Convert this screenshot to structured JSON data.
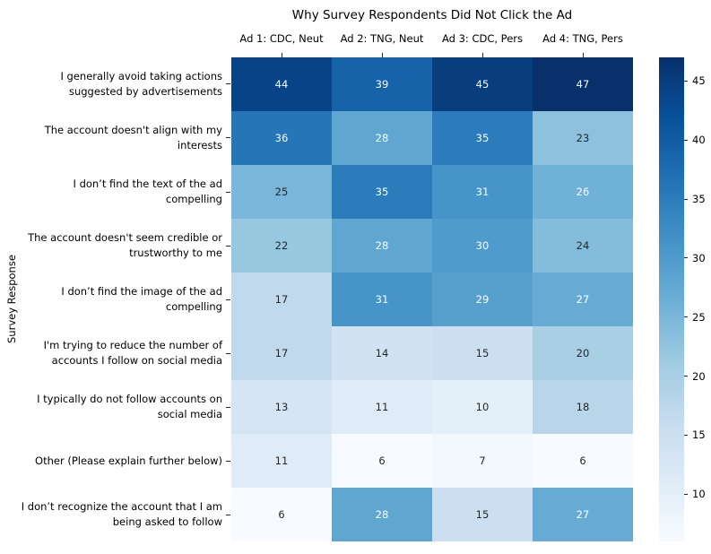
{
  "chart_data": {
    "type": "heatmap",
    "title": "Why Survey Respondents Did Not Click the Ad",
    "ylabel": "Survey Response",
    "columns": [
      "Ad 1: CDC, Neut",
      "Ad 2: TNG, Neut",
      "Ad 3: CDC, Pers",
      "Ad 4: TNG, Pers"
    ],
    "rows": [
      {
        "label": "I generally avoid taking actions suggested by advertisements",
        "lines": [
          "I generally avoid taking actions",
          "suggested by advertisements"
        ],
        "values": [
          44,
          39,
          45,
          47
        ]
      },
      {
        "label": "The account doesn't align with my interests",
        "lines": [
          "The account doesn't align with my",
          "interests"
        ],
        "values": [
          36,
          28,
          35,
          23
        ]
      },
      {
        "label": "I don’t find the text of the ad compelling",
        "lines": [
          "I don’t find the text of the ad",
          "compelling"
        ],
        "values": [
          25,
          35,
          31,
          26
        ]
      },
      {
        "label": "The account doesn't seem credible or trustworthy to me",
        "lines": [
          "The account doesn't seem credible or",
          "trustworthy to me"
        ],
        "values": [
          22,
          28,
          30,
          24
        ]
      },
      {
        "label": "I don’t find the image of the ad compelling",
        "lines": [
          "I don’t find the image of the ad",
          "compelling"
        ],
        "values": [
          17,
          31,
          29,
          27
        ]
      },
      {
        "label": "I'm trying to reduce the number of accounts I follow on social media",
        "lines": [
          "I'm trying to reduce the number of",
          "accounts I follow on social media"
        ],
        "values": [
          17,
          14,
          15,
          20
        ]
      },
      {
        "label": "I typically do not follow accounts on social media",
        "lines": [
          "I typically do not follow accounts on",
          "social media"
        ],
        "values": [
          13,
          11,
          10,
          18
        ]
      },
      {
        "label": "Other (Please explain further below)",
        "lines": [
          "Other (Please explain further below)"
        ],
        "values": [
          11,
          6,
          7,
          6
        ]
      },
      {
        "label": "I don’t recognize the account that I am being asked to follow",
        "lines": [
          "I don’t recognize the account that I am",
          "being asked to follow"
        ],
        "values": [
          6,
          28,
          15,
          27
        ]
      }
    ],
    "vmin": 6,
    "vmax": 47,
    "colormap": "Blues",
    "colormap_stops": [
      "#f7fbff",
      "#deebf7",
      "#c6dbef",
      "#9ecae1",
      "#6baed6",
      "#4292c6",
      "#2171b5",
      "#08519c",
      "#08306b"
    ],
    "colorbar_ticks": [
      45,
      40,
      35,
      30,
      25,
      20,
      15,
      10
    ],
    "annotation_colors": {
      "light": "#ffffff",
      "dark": "#262626"
    },
    "legend_position": "right-colorbar",
    "grid": false
  }
}
